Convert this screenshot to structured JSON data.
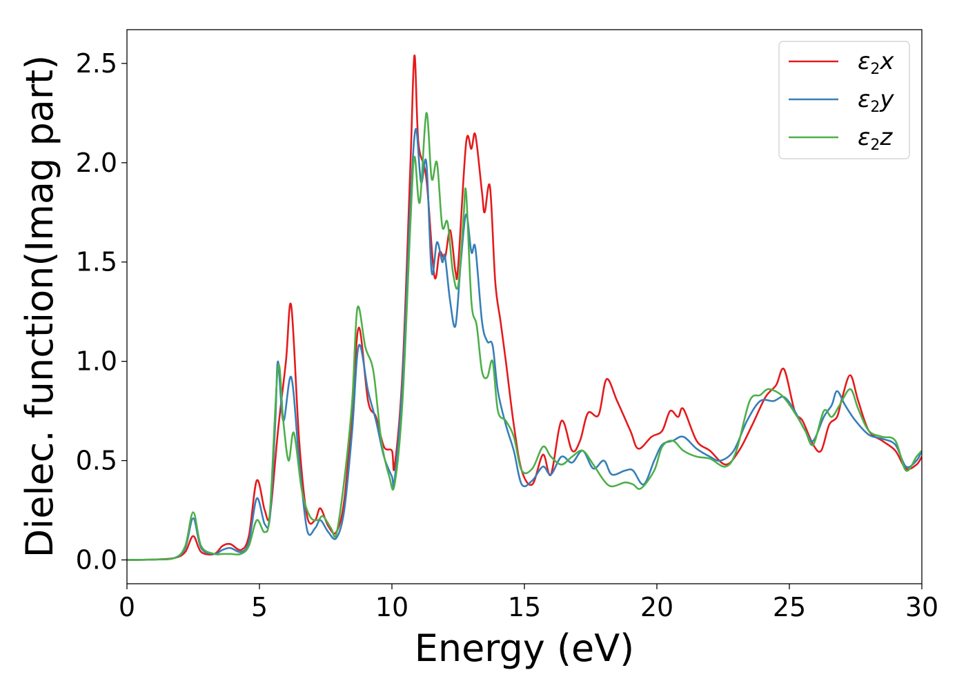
{
  "chart_data": {
    "type": "line",
    "xlabel": "Energy (eV)",
    "ylabel": "Dielec. function(Imag part)",
    "xlim": [
      0,
      30
    ],
    "ylim": [
      -0.12,
      2.67
    ],
    "xticks": [
      0,
      5,
      10,
      15,
      20,
      25,
      30
    ],
    "xtick_labels": [
      "0",
      "5",
      "10",
      "15",
      "20",
      "25",
      "30"
    ],
    "yticks": [
      0.0,
      0.5,
      1.0,
      1.5,
      2.0,
      2.5
    ],
    "ytick_labels": [
      "0.0",
      "0.5",
      "1.0",
      "1.5",
      "2.0",
      "2.5"
    ],
    "grid": false,
    "legend_position": "top-right",
    "series": [
      {
        "name": "ε2x",
        "legend_base": "ε",
        "legend_sub": "2",
        "legend_tail": "x",
        "color": "#e41a1c",
        "points": [
          [
            0,
            0
          ],
          [
            1,
            0.002
          ],
          [
            1.8,
            0.01
          ],
          [
            2.2,
            0.04
          ],
          [
            2.5,
            0.12
          ],
          [
            2.8,
            0.04
          ],
          [
            3.3,
            0.03
          ],
          [
            3.6,
            0.07
          ],
          [
            3.9,
            0.08
          ],
          [
            4.3,
            0.05
          ],
          [
            4.6,
            0.12
          ],
          [
            4.9,
            0.4
          ],
          [
            5.2,
            0.25
          ],
          [
            5.4,
            0.23
          ],
          [
            5.7,
            0.65
          ],
          [
            6.0,
            1.0
          ],
          [
            6.2,
            1.28
          ],
          [
            6.5,
            0.6
          ],
          [
            6.8,
            0.22
          ],
          [
            7.1,
            0.2
          ],
          [
            7.3,
            0.26
          ],
          [
            7.6,
            0.17
          ],
          [
            7.9,
            0.14
          ],
          [
            8.2,
            0.3
          ],
          [
            8.5,
            0.75
          ],
          [
            8.75,
            1.17
          ],
          [
            9.1,
            0.8
          ],
          [
            9.4,
            0.72
          ],
          [
            9.7,
            0.57
          ],
          [
            10.0,
            0.55
          ],
          [
            10.1,
            0.47
          ],
          [
            10.4,
            0.95
          ],
          [
            10.7,
            2.0
          ],
          [
            10.85,
            2.54
          ],
          [
            11.0,
            2.1
          ],
          [
            11.3,
            1.92
          ],
          [
            11.6,
            1.43
          ],
          [
            11.8,
            1.55
          ],
          [
            12.0,
            1.52
          ],
          [
            12.2,
            1.66
          ],
          [
            12.4,
            1.45
          ],
          [
            12.5,
            1.48
          ],
          [
            12.8,
            2.1
          ],
          [
            13.0,
            2.07
          ],
          [
            13.15,
            2.14
          ],
          [
            13.4,
            1.85
          ],
          [
            13.5,
            1.75
          ],
          [
            13.7,
            1.88
          ],
          [
            13.9,
            1.4
          ],
          [
            14.1,
            1.2
          ],
          [
            14.3,
            1.0
          ],
          [
            14.6,
            0.68
          ],
          [
            14.9,
            0.45
          ],
          [
            15.3,
            0.38
          ],
          [
            15.7,
            0.53
          ],
          [
            16.0,
            0.43
          ],
          [
            16.4,
            0.7
          ],
          [
            16.8,
            0.55
          ],
          [
            17.1,
            0.6
          ],
          [
            17.4,
            0.74
          ],
          [
            17.8,
            0.73
          ],
          [
            18.1,
            0.91
          ],
          [
            18.5,
            0.8
          ],
          [
            19.0,
            0.65
          ],
          [
            19.3,
            0.56
          ],
          [
            19.8,
            0.62
          ],
          [
            20.2,
            0.65
          ],
          [
            20.5,
            0.75
          ],
          [
            20.8,
            0.72
          ],
          [
            21.0,
            0.76
          ],
          [
            21.5,
            0.6
          ],
          [
            22.0,
            0.55
          ],
          [
            22.6,
            0.48
          ],
          [
            23.1,
            0.55
          ],
          [
            23.6,
            0.68
          ],
          [
            24.1,
            0.82
          ],
          [
            24.5,
            0.88
          ],
          [
            24.8,
            0.96
          ],
          [
            25.2,
            0.75
          ],
          [
            25.5,
            0.7
          ],
          [
            25.9,
            0.58
          ],
          [
            26.2,
            0.55
          ],
          [
            26.5,
            0.68
          ],
          [
            26.8,
            0.72
          ],
          [
            27.0,
            0.82
          ],
          [
            27.3,
            0.93
          ],
          [
            27.6,
            0.8
          ],
          [
            28.0,
            0.65
          ],
          [
            28.5,
            0.6
          ],
          [
            29.0,
            0.55
          ],
          [
            29.4,
            0.46
          ],
          [
            29.8,
            0.48
          ],
          [
            30.0,
            0.52
          ]
        ]
      },
      {
        "name": "ε2y",
        "legend_base": "ε",
        "legend_sub": "2",
        "legend_tail": "y",
        "color": "#377eb8",
        "points": [
          [
            0,
            0
          ],
          [
            1,
            0.002
          ],
          [
            1.8,
            0.01
          ],
          [
            2.2,
            0.06
          ],
          [
            2.5,
            0.21
          ],
          [
            2.8,
            0.06
          ],
          [
            3.3,
            0.03
          ],
          [
            3.6,
            0.05
          ],
          [
            3.9,
            0.06
          ],
          [
            4.3,
            0.04
          ],
          [
            4.6,
            0.09
          ],
          [
            4.9,
            0.31
          ],
          [
            5.2,
            0.18
          ],
          [
            5.4,
            0.22
          ],
          [
            5.6,
            0.7
          ],
          [
            5.7,
            1.0
          ],
          [
            5.9,
            0.7
          ],
          [
            6.2,
            0.92
          ],
          [
            6.5,
            0.5
          ],
          [
            6.8,
            0.15
          ],
          [
            7.1,
            0.16
          ],
          [
            7.3,
            0.2
          ],
          [
            7.6,
            0.14
          ],
          [
            7.9,
            0.11
          ],
          [
            8.2,
            0.25
          ],
          [
            8.5,
            0.65
          ],
          [
            8.75,
            1.08
          ],
          [
            9.1,
            0.85
          ],
          [
            9.4,
            0.7
          ],
          [
            9.7,
            0.52
          ],
          [
            10.0,
            0.42
          ],
          [
            10.1,
            0.4
          ],
          [
            10.4,
            0.9
          ],
          [
            10.7,
            1.8
          ],
          [
            10.9,
            2.17
          ],
          [
            11.1,
            1.9
          ],
          [
            11.3,
            2.0
          ],
          [
            11.5,
            1.45
          ],
          [
            11.7,
            1.6
          ],
          [
            11.9,
            1.5
          ],
          [
            12.0,
            1.53
          ],
          [
            12.2,
            1.3
          ],
          [
            12.4,
            1.18
          ],
          [
            12.6,
            1.5
          ],
          [
            12.8,
            1.74
          ],
          [
            13.0,
            1.55
          ],
          [
            13.15,
            1.57
          ],
          [
            13.4,
            1.2
          ],
          [
            13.6,
            1.1
          ],
          [
            13.8,
            1.08
          ],
          [
            14.0,
            0.85
          ],
          [
            14.3,
            0.68
          ],
          [
            14.6,
            0.55
          ],
          [
            14.9,
            0.38
          ],
          [
            15.3,
            0.4
          ],
          [
            15.7,
            0.47
          ],
          [
            16.0,
            0.43
          ],
          [
            16.4,
            0.52
          ],
          [
            16.8,
            0.49
          ],
          [
            17.2,
            0.55
          ],
          [
            17.6,
            0.46
          ],
          [
            18.0,
            0.5
          ],
          [
            18.3,
            0.43
          ],
          [
            18.8,
            0.45
          ],
          [
            19.1,
            0.45
          ],
          [
            19.5,
            0.38
          ],
          [
            19.9,
            0.5
          ],
          [
            20.2,
            0.58
          ],
          [
            20.6,
            0.6
          ],
          [
            21.0,
            0.62
          ],
          [
            21.5,
            0.56
          ],
          [
            22.0,
            0.52
          ],
          [
            22.4,
            0.5
          ],
          [
            22.9,
            0.55
          ],
          [
            23.4,
            0.7
          ],
          [
            23.9,
            0.8
          ],
          [
            24.4,
            0.8
          ],
          [
            24.8,
            0.82
          ],
          [
            25.2,
            0.75
          ],
          [
            25.6,
            0.65
          ],
          [
            25.9,
            0.6
          ],
          [
            26.3,
            0.72
          ],
          [
            26.6,
            0.78
          ],
          [
            26.8,
            0.85
          ],
          [
            27.1,
            0.78
          ],
          [
            27.5,
            0.7
          ],
          [
            28.0,
            0.63
          ],
          [
            28.5,
            0.61
          ],
          [
            29.0,
            0.58
          ],
          [
            29.4,
            0.47
          ],
          [
            29.8,
            0.5
          ],
          [
            30.0,
            0.55
          ]
        ]
      },
      {
        "name": "ε2z",
        "legend_base": "ε",
        "legend_sub": "2",
        "legend_tail": "z",
        "color": "#4daf4a",
        "points": [
          [
            0,
            0
          ],
          [
            1,
            0.002
          ],
          [
            1.8,
            0.01
          ],
          [
            2.2,
            0.07
          ],
          [
            2.5,
            0.24
          ],
          [
            2.8,
            0.07
          ],
          [
            3.3,
            0.03
          ],
          [
            3.6,
            0.03
          ],
          [
            3.9,
            0.03
          ],
          [
            4.3,
            0.03
          ],
          [
            4.6,
            0.07
          ],
          [
            4.9,
            0.2
          ],
          [
            5.2,
            0.14
          ],
          [
            5.4,
            0.25
          ],
          [
            5.7,
            0.97
          ],
          [
            5.9,
            0.7
          ],
          [
            6.1,
            0.5
          ],
          [
            6.3,
            0.64
          ],
          [
            6.6,
            0.35
          ],
          [
            6.9,
            0.22
          ],
          [
            7.2,
            0.2
          ],
          [
            7.4,
            0.22
          ],
          [
            7.7,
            0.16
          ],
          [
            7.9,
            0.13
          ],
          [
            8.2,
            0.4
          ],
          [
            8.5,
            0.8
          ],
          [
            8.7,
            1.27
          ],
          [
            9.0,
            1.07
          ],
          [
            9.3,
            0.95
          ],
          [
            9.6,
            0.6
          ],
          [
            9.9,
            0.42
          ],
          [
            10.1,
            0.38
          ],
          [
            10.4,
            0.8
          ],
          [
            10.7,
            1.7
          ],
          [
            10.85,
            2.03
          ],
          [
            11.05,
            1.8
          ],
          [
            11.3,
            2.25
          ],
          [
            11.5,
            1.92
          ],
          [
            11.7,
            2.0
          ],
          [
            11.9,
            1.68
          ],
          [
            12.1,
            1.7
          ],
          [
            12.3,
            1.45
          ],
          [
            12.5,
            1.38
          ],
          [
            12.7,
            1.72
          ],
          [
            12.8,
            1.85
          ],
          [
            13.0,
            1.3
          ],
          [
            13.2,
            1.18
          ],
          [
            13.4,
            0.95
          ],
          [
            13.6,
            0.92
          ],
          [
            13.8,
            1.0
          ],
          [
            14.0,
            0.75
          ],
          [
            14.3,
            0.7
          ],
          [
            14.6,
            0.62
          ],
          [
            14.9,
            0.45
          ],
          [
            15.3,
            0.46
          ],
          [
            15.7,
            0.57
          ],
          [
            16.0,
            0.52
          ],
          [
            16.4,
            0.48
          ],
          [
            16.8,
            0.52
          ],
          [
            17.2,
            0.55
          ],
          [
            17.6,
            0.48
          ],
          [
            18.0,
            0.4
          ],
          [
            18.3,
            0.37
          ],
          [
            18.8,
            0.39
          ],
          [
            19.1,
            0.38
          ],
          [
            19.4,
            0.36
          ],
          [
            19.9,
            0.45
          ],
          [
            20.2,
            0.57
          ],
          [
            20.6,
            0.6
          ],
          [
            21.0,
            0.55
          ],
          [
            21.5,
            0.52
          ],
          [
            22.0,
            0.51
          ],
          [
            22.6,
            0.47
          ],
          [
            23.0,
            0.55
          ],
          [
            23.5,
            0.8
          ],
          [
            23.9,
            0.83
          ],
          [
            24.2,
            0.86
          ],
          [
            24.6,
            0.84
          ],
          [
            24.9,
            0.8
          ],
          [
            25.3,
            0.72
          ],
          [
            25.6,
            0.65
          ],
          [
            25.9,
            0.58
          ],
          [
            26.3,
            0.75
          ],
          [
            26.6,
            0.72
          ],
          [
            26.9,
            0.78
          ],
          [
            27.3,
            0.86
          ],
          [
            27.6,
            0.76
          ],
          [
            28.0,
            0.65
          ],
          [
            28.5,
            0.62
          ],
          [
            29.0,
            0.6
          ],
          [
            29.4,
            0.45
          ],
          [
            29.8,
            0.52
          ],
          [
            30.0,
            0.55
          ]
        ]
      }
    ]
  }
}
